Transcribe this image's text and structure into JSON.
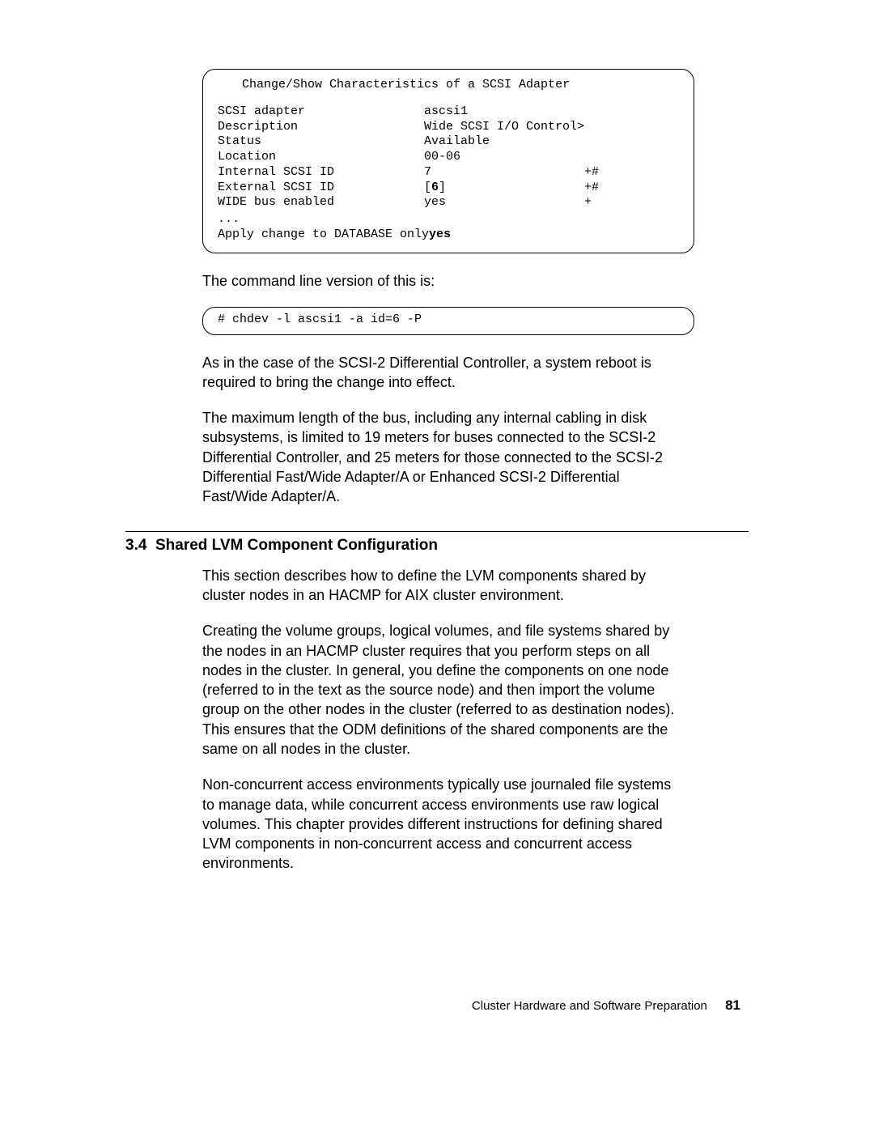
{
  "terminal1": {
    "title": "Change/Show Characteristics of a SCSI Adapter",
    "rows": [
      {
        "label": "SCSI adapter",
        "value": "ascsi1",
        "flag": "",
        "value_bold": false
      },
      {
        "label": "Description",
        "value": "Wide SCSI I/O Control>",
        "flag": "",
        "value_bold": false
      },
      {
        "label": "Status",
        "value": "Available",
        "flag": "",
        "value_bold": false
      },
      {
        "label": "Location",
        "value": "00-06",
        "flag": "",
        "value_bold": false
      },
      {
        "label": "Internal SCSI ID",
        "value": "7",
        "flag": "+#",
        "value_bold": false
      },
      {
        "label": "External SCSI ID",
        "value": "[6]",
        "flag": "+#",
        "value_bold": true
      },
      {
        "label": "WIDE bus enabled",
        "value": "yes",
        "flag": "+",
        "value_bold": false
      }
    ],
    "ellipsis": "...",
    "last": {
      "label": "Apply change to DATABASE only",
      "value": "yes",
      "value_bold": true
    }
  },
  "para1": "The command line version of this is:",
  "terminal2": {
    "line": "# chdev -l ascsi1 -a id=6 -P"
  },
  "para2": "As in the case of the SCSI-2 Differential Controller, a system reboot is required to bring the change into effect.",
  "para3": "The maximum length of the bus, including any internal cabling in disk subsystems, is limited to 19 meters for buses connected to the SCSI-2 Differential Controller, and 25 meters for those connected to the SCSI-2 Differential Fast/Wide Adapter/A or Enhanced SCSI-2 Differential Fast/Wide Adapter/A.",
  "section": {
    "number": "3.4",
    "title": "Shared LVM Component Configuration"
  },
  "para4": "This section describes how to define the LVM components shared by cluster nodes in an HACMP for AIX cluster environment.",
  "para5": "Creating the volume groups, logical volumes, and file systems shared by the nodes in an HACMP cluster requires that you perform steps on all nodes in the cluster. In general, you define the components on one node (referred to in the text as the source node) and then import the volume group on the other nodes in the cluster (referred to as destination nodes). This ensures that the ODM definitions of the shared components are the same on all nodes in the cluster.",
  "para6": "Non-concurrent access environments typically use journaled file systems to manage data, while concurrent access environments use raw logical volumes. This chapter provides different instructions for defining shared LVM components in non-concurrent access and concurrent access environments.",
  "footer": {
    "text": "Cluster Hardware and Software Preparation",
    "page": "81"
  }
}
